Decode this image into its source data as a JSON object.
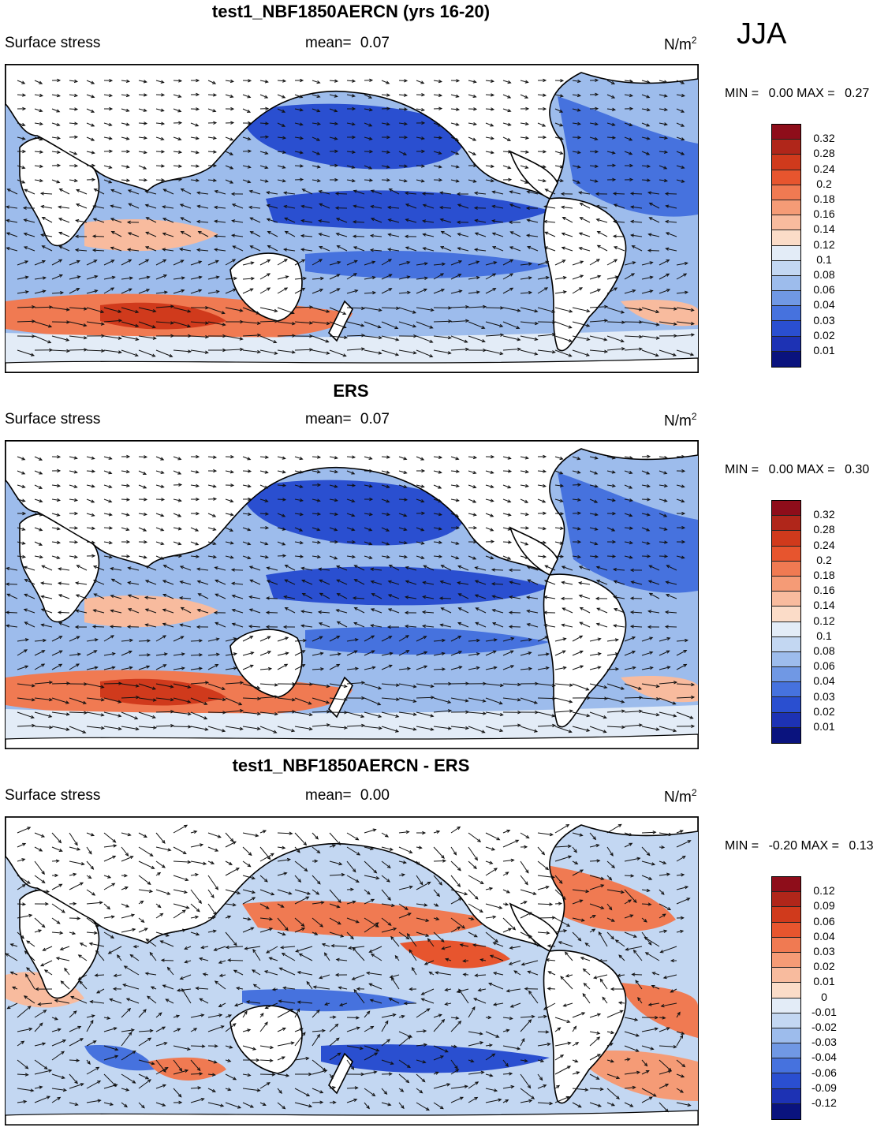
{
  "season": "JJA",
  "units_base": "N/m",
  "units_exp": "2",
  "variable": "Surface stress",
  "panels": [
    {
      "title": "test1_NBF1850AERCN (yrs 16-20)",
      "mean_label": "mean=",
      "mean_value": "0.07",
      "min_label": "MIN =",
      "min_value": "0.00",
      "max_label": "MAX =",
      "max_value": "0.27",
      "colorbar_labels": [
        "0.32",
        "0.28",
        "0.24",
        "0.2",
        "0.18",
        "0.16",
        "0.14",
        "0.12",
        "0.1",
        "0.08",
        "0.06",
        "0.04",
        "0.03",
        "0.02",
        "0.01"
      ],
      "colorbar_colors": [
        "#8e0d1a",
        "#b0261a",
        "#d03a1c",
        "#e7552e",
        "#f07a52",
        "#f59b76",
        "#f8bb9e",
        "#fbdcc8",
        "#e3ecf7",
        "#c3d7f2",
        "#9dbcec",
        "#7098e4",
        "#4672de",
        "#2a4fd0",
        "#1d32b4",
        "#0a137e"
      ]
    },
    {
      "title": "ERS",
      "mean_label": "mean=",
      "mean_value": "0.07",
      "min_label": "MIN =",
      "min_value": "0.00",
      "max_label": "MAX =",
      "max_value": "0.30",
      "colorbar_labels": [
        "0.32",
        "0.28",
        "0.24",
        "0.2",
        "0.18",
        "0.16",
        "0.14",
        "0.12",
        "0.1",
        "0.08",
        "0.06",
        "0.04",
        "0.03",
        "0.02",
        "0.01"
      ],
      "colorbar_colors": [
        "#8e0d1a",
        "#b0261a",
        "#d03a1c",
        "#e7552e",
        "#f07a52",
        "#f59b76",
        "#f8bb9e",
        "#fbdcc8",
        "#e3ecf7",
        "#c3d7f2",
        "#9dbcec",
        "#7098e4",
        "#4672de",
        "#2a4fd0",
        "#1d32b4",
        "#0a137e"
      ]
    },
    {
      "title": "test1_NBF1850AERCN - ERS",
      "mean_label": "mean=",
      "mean_value": "0.00",
      "min_label": "MIN =",
      "min_value": "-0.20",
      "max_label": "MAX =",
      "max_value": "0.13",
      "colorbar_labels": [
        "0.12",
        "0.09",
        "0.06",
        "0.04",
        "0.03",
        "0.02",
        "0.01",
        "0",
        "-0.01",
        "-0.02",
        "-0.03",
        "-0.04",
        "-0.06",
        "-0.09",
        "-0.12"
      ],
      "colorbar_colors": [
        "#8e0d1a",
        "#b0261a",
        "#d03a1c",
        "#e7552e",
        "#f07a52",
        "#f59b76",
        "#f8bb9e",
        "#fbdcc8",
        "#e3ecf7",
        "#c3d7f2",
        "#9dbcec",
        "#7098e4",
        "#4672de",
        "#2a4fd0",
        "#1d32b4",
        "#0a137e"
      ]
    }
  ],
  "chart_data": [
    {
      "type": "heatmap",
      "title": "test1_NBF1850AERCN (yrs 16-20)",
      "variable": "Surface stress",
      "units": "N/m2",
      "season": "JJA",
      "mean": 0.07,
      "min": 0.0,
      "max": 0.27,
      "levels": [
        0.01,
        0.02,
        0.03,
        0.04,
        0.06,
        0.08,
        0.1,
        0.12,
        0.14,
        0.16,
        0.18,
        0.2,
        0.24,
        0.28,
        0.32
      ],
      "overlay": "wind stress vectors"
    },
    {
      "type": "heatmap",
      "title": "ERS",
      "variable": "Surface stress",
      "units": "N/m2",
      "season": "JJA",
      "mean": 0.07,
      "min": 0.0,
      "max": 0.3,
      "levels": [
        0.01,
        0.02,
        0.03,
        0.04,
        0.06,
        0.08,
        0.1,
        0.12,
        0.14,
        0.16,
        0.18,
        0.2,
        0.24,
        0.28,
        0.32
      ],
      "overlay": "wind stress vectors"
    },
    {
      "type": "heatmap",
      "title": "test1_NBF1850AERCN - ERS",
      "variable": "Surface stress",
      "units": "N/m2",
      "season": "JJA",
      "mean": 0.0,
      "min": -0.2,
      "max": 0.13,
      "levels": [
        -0.12,
        -0.09,
        -0.06,
        -0.04,
        -0.03,
        -0.02,
        -0.01,
        0,
        0.01,
        0.02,
        0.03,
        0.04,
        0.06,
        0.09,
        0.12
      ],
      "overlay": "wind stress difference vectors"
    }
  ]
}
